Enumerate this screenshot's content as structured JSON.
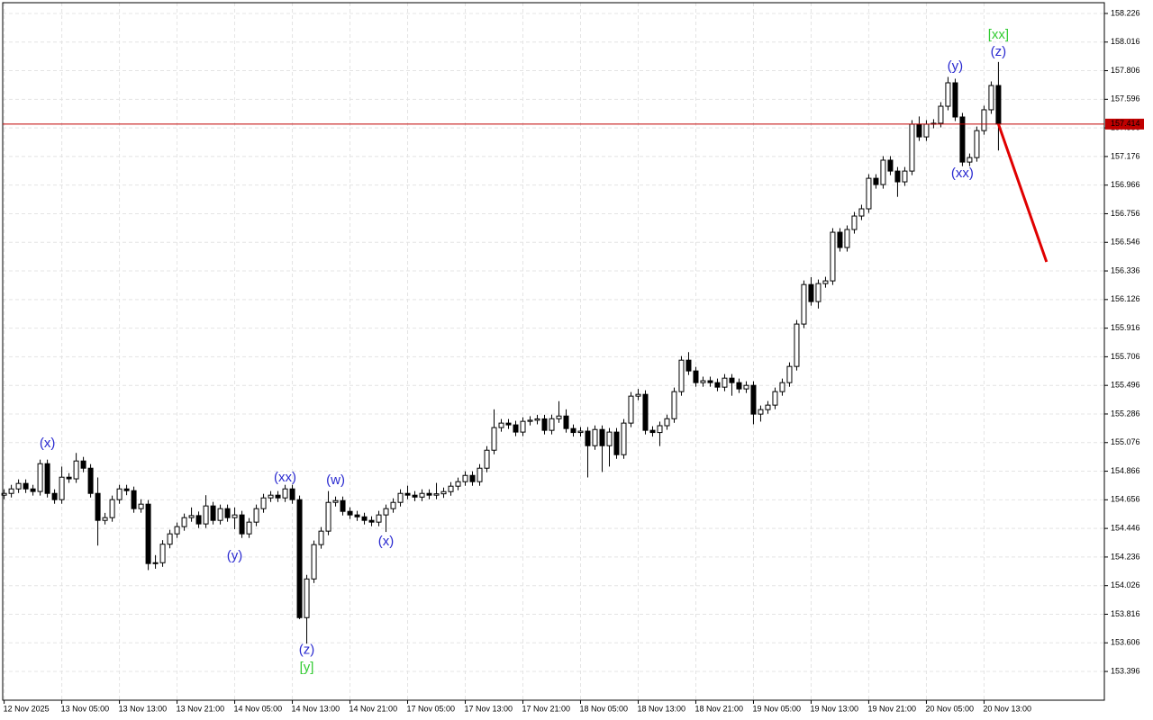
{
  "chart_data": {
    "type": "candlestick",
    "xlim": [
      -0.2,
      152.7
    ],
    "ylim": [
      153.185,
      158.305
    ],
    "grid": true,
    "up_color": "#ffffff",
    "down_color": "#000000",
    "xticks": [
      {
        "value": 0,
        "label": "12 Nov 2025"
      },
      {
        "value": 8,
        "label": "13 Nov 05:00"
      },
      {
        "value": 16,
        "label": "13 Nov 13:00"
      },
      {
        "value": 24,
        "label": "13 Nov 21:00"
      },
      {
        "value": 32,
        "label": "14 Nov 05:00"
      },
      {
        "value": 40,
        "label": "14 Nov 13:00"
      },
      {
        "value": 48,
        "label": "14 Nov 21:00"
      },
      {
        "value": 56,
        "label": "17 Nov 05:00"
      },
      {
        "value": 64,
        "label": "17 Nov 13:00"
      },
      {
        "value": 72,
        "label": "17 Nov 21:00"
      },
      {
        "value": 80,
        "label": "18 Nov 05:00"
      },
      {
        "value": 88,
        "label": "18 Nov 13:00"
      },
      {
        "value": 96,
        "label": "18 Nov 21:00"
      },
      {
        "value": 104,
        "label": "19 Nov 05:00"
      },
      {
        "value": 112,
        "label": "19 Nov 13:00"
      },
      {
        "value": 120,
        "label": "19 Nov 21:00"
      },
      {
        "value": 128,
        "label": "20 Nov 05:00"
      },
      {
        "value": 136,
        "label": "20 Nov 13:00"
      }
    ],
    "yticks": [
      153.396,
      153.606,
      153.816,
      154.026,
      154.236,
      154.446,
      154.656,
      154.866,
      155.076,
      155.286,
      155.496,
      155.706,
      155.916,
      156.126,
      156.336,
      156.546,
      156.756,
      156.966,
      157.176,
      157.386,
      157.596,
      157.806,
      158.016,
      158.226
    ],
    "current_price": 157.414,
    "current_price_color": "#c00000",
    "open": [
      154.69,
      154.703,
      154.736,
      154.776,
      154.736,
      154.717,
      154.921,
      154.703,
      154.657,
      154.822,
      154.81,
      154.941,
      154.888,
      154.703,
      154.505,
      154.525,
      154.657,
      154.736,
      154.723,
      154.591,
      154.624,
      154.188,
      154.194,
      154.33,
      154.406,
      154.459,
      154.525,
      154.54,
      154.479,
      154.611,
      154.505,
      154.591,
      154.525,
      154.545,
      154.406,
      154.492,
      154.591,
      154.67,
      154.69,
      154.67,
      154.736,
      154.657,
      153.791,
      154.075,
      154.327,
      154.426,
      154.637,
      154.65,
      154.571,
      154.545,
      154.531,
      154.505,
      154.492,
      154.545,
      154.591,
      154.637,
      154.703,
      154.69,
      154.676,
      154.703,
      154.69,
      154.7,
      154.716,
      154.756,
      154.789,
      154.835,
      154.789,
      154.888,
      155.02,
      155.186,
      155.219,
      155.206,
      155.153,
      155.232,
      155.24,
      155.25,
      155.166,
      155.251,
      155.271,
      155.179,
      155.15,
      155.16,
      155.053,
      155.172,
      155.053,
      155.153,
      154.987,
      155.219,
      155.417,
      155.43,
      155.166,
      155.15,
      155.2,
      155.251,
      155.45,
      155.681,
      155.602,
      155.516,
      155.53,
      155.516,
      155.483,
      155.549,
      155.516,
      155.47,
      155.496,
      155.285,
      155.318,
      155.351,
      155.45,
      155.516,
      155.635,
      155.946,
      156.236,
      156.111,
      156.243,
      156.263,
      156.62,
      156.508,
      156.64,
      156.739,
      156.792,
      157.016,
      156.97,
      157.149,
      157.069,
      156.99,
      157.069,
      157.413,
      157.32,
      157.413,
      157.42,
      157.545,
      157.717,
      157.466,
      157.135,
      157.168,
      157.366,
      157.519,
      157.697
    ],
    "high": [
      154.733,
      154.766,
      154.806,
      154.806,
      154.766,
      154.951,
      154.951,
      154.733,
      154.9,
      154.852,
      155.0,
      154.971,
      154.918,
      154.82,
      154.56,
      154.687,
      154.766,
      154.766,
      154.753,
      154.66,
      154.654,
      154.25,
      154.36,
      154.436,
      154.489,
      154.555,
      154.6,
      154.57,
      154.69,
      154.641,
      154.621,
      154.621,
      154.6,
      154.575,
      154.522,
      154.621,
      154.7,
      154.72,
      154.72,
      154.766,
      154.766,
      154.687,
      154.105,
      154.357,
      154.456,
      154.72,
      154.68,
      154.68,
      154.601,
      154.575,
      154.561,
      154.535,
      154.575,
      154.621,
      154.667,
      154.733,
      154.76,
      154.72,
      154.733,
      154.733,
      154.78,
      154.746,
      154.786,
      154.819,
      154.865,
      154.865,
      154.918,
      155.05,
      155.32,
      155.249,
      155.249,
      155.236,
      155.262,
      155.27,
      155.28,
      155.28,
      155.281,
      155.38,
      155.32,
      155.209,
      155.19,
      155.19,
      155.202,
      155.202,
      155.183,
      155.183,
      155.249,
      155.447,
      155.47,
      155.46,
      155.196,
      155.23,
      155.281,
      155.48,
      155.711,
      155.74,
      155.632,
      155.56,
      155.56,
      155.546,
      155.579,
      155.579,
      155.546,
      155.526,
      155.526,
      155.348,
      155.381,
      155.48,
      155.546,
      155.665,
      155.976,
      156.266,
      156.29,
      156.273,
      156.293,
      156.65,
      156.65,
      156.67,
      156.769,
      156.822,
      157.046,
      157.046,
      157.179,
      157.179,
      157.099,
      157.099,
      157.443,
      157.47,
      157.443,
      157.45,
      157.575,
      157.76,
      157.747,
      157.496,
      157.198,
      157.396,
      157.549,
      157.727,
      157.87
    ],
    "low": [
      154.66,
      154.673,
      154.706,
      154.706,
      154.687,
      154.687,
      154.673,
      154.627,
      154.627,
      154.78,
      154.78,
      154.858,
      154.673,
      154.32,
      154.475,
      154.495,
      154.627,
      154.69,
      154.561,
      154.561,
      154.14,
      154.15,
      154.164,
      154.3,
      154.376,
      154.429,
      154.495,
      154.449,
      154.449,
      154.475,
      154.475,
      154.495,
      154.44,
      154.376,
      154.376,
      154.462,
      154.561,
      154.64,
      154.64,
      154.64,
      154.627,
      153.78,
      153.6,
      154.045,
      154.297,
      154.396,
      154.607,
      154.541,
      154.515,
      154.501,
      154.475,
      154.462,
      154.462,
      154.42,
      154.561,
      154.607,
      154.66,
      154.646,
      154.646,
      154.66,
      154.66,
      154.67,
      154.686,
      154.726,
      154.759,
      154.759,
      154.759,
      154.858,
      154.99,
      155.156,
      155.176,
      155.123,
      155.123,
      155.202,
      155.21,
      155.136,
      155.136,
      155.221,
      155.149,
      155.12,
      155.12,
      154.82,
      155.023,
      154.86,
      154.9,
      154.957,
      154.957,
      155.189,
      155.387,
      155.136,
      155.12,
      155.05,
      155.17,
      155.221,
      155.42,
      155.572,
      155.486,
      155.486,
      155.486,
      155.453,
      155.453,
      155.42,
      155.44,
      155.44,
      155.21,
      155.23,
      155.288,
      155.321,
      155.42,
      155.486,
      155.605,
      155.916,
      156.081,
      156.06,
      156.213,
      156.233,
      156.478,
      156.478,
      156.61,
      156.709,
      156.762,
      156.94,
      156.94,
      157.039,
      156.88,
      156.96,
      157.039,
      157.29,
      157.29,
      157.383,
      157.39,
      157.515,
      157.436,
      157.105,
      157.105,
      157.138,
      157.336,
      157.489,
      157.22
    ],
    "close": [
      154.703,
      154.736,
      154.776,
      154.736,
      154.717,
      154.921,
      154.703,
      154.657,
      154.822,
      154.81,
      154.941,
      154.888,
      154.703,
      154.505,
      154.525,
      154.657,
      154.736,
      154.723,
      154.591,
      154.624,
      154.188,
      154.194,
      154.33,
      154.406,
      154.459,
      154.525,
      154.54,
      154.479,
      154.611,
      154.505,
      154.591,
      154.525,
      154.545,
      154.406,
      154.492,
      154.591,
      154.67,
      154.69,
      154.67,
      154.736,
      154.657,
      153.791,
      154.075,
      154.327,
      154.426,
      154.637,
      154.65,
      154.571,
      154.545,
      154.531,
      154.505,
      154.492,
      154.545,
      154.591,
      154.637,
      154.703,
      154.69,
      154.676,
      154.703,
      154.69,
      154.7,
      154.716,
      154.756,
      154.789,
      154.835,
      154.789,
      154.888,
      155.02,
      155.186,
      155.219,
      155.206,
      155.153,
      155.232,
      155.24,
      155.25,
      155.166,
      155.251,
      155.271,
      155.179,
      155.15,
      155.16,
      155.053,
      155.172,
      155.053,
      155.153,
      154.987,
      155.219,
      155.417,
      155.43,
      155.166,
      155.15,
      155.2,
      155.251,
      155.45,
      155.681,
      155.602,
      155.516,
      155.53,
      155.516,
      155.483,
      155.549,
      155.516,
      155.47,
      155.496,
      155.285,
      155.318,
      155.351,
      155.45,
      155.516,
      155.635,
      155.946,
      156.236,
      156.111,
      156.243,
      156.263,
      156.62,
      156.508,
      156.64,
      156.739,
      156.792,
      157.016,
      156.97,
      157.149,
      157.069,
      156.99,
      157.069,
      157.413,
      157.32,
      157.413,
      157.42,
      157.545,
      157.717,
      157.466,
      157.135,
      157.168,
      157.366,
      157.519,
      157.697,
      157.414
    ],
    "forecast": {
      "color": "#e00000",
      "x": [
        138,
        144.675
      ],
      "y": [
        157.414,
        156.402
      ]
    },
    "annotations": [
      {
        "text": "(x)",
        "x": 6,
        "y": 155.067,
        "color": "#2a2ad0"
      },
      {
        "text": "(y)",
        "x": 32,
        "y": 154.241,
        "color": "#2a2ad0"
      },
      {
        "text": "(xx)",
        "x": 39,
        "y": 154.815,
        "color": "#2a2ad0"
      },
      {
        "text": "(z)",
        "x": 42,
        "y": 153.553,
        "color": "#2a2ad0"
      },
      {
        "text": "[y]",
        "x": 42,
        "y": 153.421,
        "color": "#33cc33"
      },
      {
        "text": "(w)",
        "x": 46,
        "y": 154.796,
        "color": "#2a2ad0"
      },
      {
        "text": "(x)",
        "x": 53,
        "y": 154.346,
        "color": "#2a2ad0"
      },
      {
        "text": "(y)",
        "x": 132,
        "y": 157.836,
        "color": "#2a2ad0"
      },
      {
        "text": "(xx)",
        "x": 133,
        "y": 157.049,
        "color": "#2a2ad0"
      },
      {
        "text": "(z)",
        "x": 138,
        "y": 157.942,
        "color": "#2a2ad0"
      },
      {
        "text": "[xx]",
        "x": 138,
        "y": 158.067,
        "color": "#33cc33"
      }
    ]
  }
}
